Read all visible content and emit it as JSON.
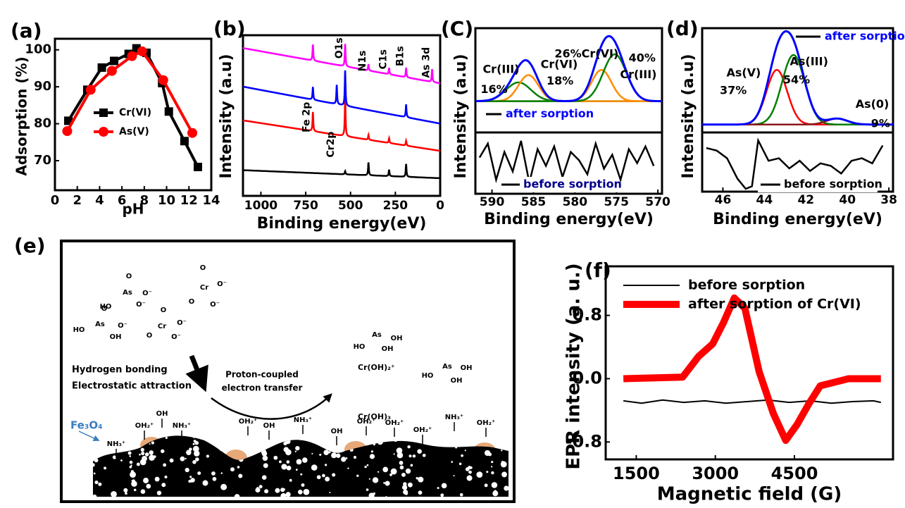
{
  "chart_data": [
    {
      "type": "line",
      "panel": "(a)",
      "xlabel": "pH",
      "ylabel": "Adsorption (%)",
      "xlim": [
        0,
        14
      ],
      "xticks": [
        0,
        2,
        4,
        6,
        8,
        10,
        12,
        14
      ],
      "ylim": [
        62,
        103
      ],
      "yticks": [
        70,
        80,
        90,
        100
      ],
      "legend": "center-left",
      "series": [
        {
          "name": "Cr(VI)",
          "color": "#000000",
          "marker": "square",
          "line_width": 4,
          "x": [
            1.2,
            2.9,
            4.2,
            5.3,
            6.6,
            7.3,
            8.2,
            9.6,
            10.2,
            11.6,
            12.8
          ],
          "values": [
            80.8,
            89.2,
            95.2,
            97,
            98.9,
            100.4,
            99.2,
            91,
            83.3,
            75.3,
            68.3
          ]
        },
        {
          "name": "As(V)",
          "color": "#ff0000",
          "marker": "circle",
          "line_width": 4,
          "x": [
            1.1,
            3.2,
            5.1,
            6.9,
            7.8,
            9.7,
            12.3
          ],
          "values": [
            78,
            89.2,
            94.3,
            98.3,
            99.6,
            91.8,
            77.5
          ]
        }
      ]
    },
    {
      "type": "survey",
      "panel": "(b)",
      "xlabel": "Binding energy(eV)",
      "ylabel": "Intensity (a.u)",
      "xlim": [
        1100,
        0
      ],
      "xticks": [
        1000,
        750,
        500,
        250,
        0
      ],
      "ylim": [
        0,
        100
      ],
      "annotations": [
        {
          "text": "Fe 2p",
          "x": 712,
          "y": 49
        },
        {
          "text": "Cr2p",
          "x": 577,
          "y": 32
        },
        {
          "text": "O1s",
          "x": 530,
          "y": 92
        },
        {
          "text": "N1s",
          "x": 400,
          "y": 84
        },
        {
          "text": "C1s",
          "x": 285,
          "y": 85
        },
        {
          "text": "B1s",
          "x": 190,
          "y": 87
        },
        {
          "text": "As 3d",
          "x": 45,
          "y": 83
        }
      ],
      "series": [
        {
          "color": "#000000",
          "levels": [
            16,
            11
          ],
          "peaks": [
            {
              "x": 530,
              "h": 2
            },
            {
              "x": 400,
              "h": 8
            },
            {
              "x": 285,
              "h": 4
            },
            {
              "x": 190,
              "h": 8
            }
          ]
        },
        {
          "color": "#ff0000",
          "levels": [
            47,
            28
          ],
          "peaks": [
            {
              "x": 710,
              "h": 12
            },
            {
              "x": 530,
              "h": 25
            },
            {
              "x": 400,
              "h": 3
            },
            {
              "x": 285,
              "h": 3
            },
            {
              "x": 190,
              "h": 3
            }
          ]
        },
        {
          "color": "#0000ff",
          "levels": [
            68,
            45
          ],
          "peaks": [
            {
              "x": 710,
              "h": 8
            },
            {
              "x": 577,
              "h": 12
            },
            {
              "x": 530,
              "h": 22
            },
            {
              "x": 190,
              "h": 8
            }
          ]
        },
        {
          "color": "#ff00ff",
          "levels": [
            92,
            70
          ],
          "peaks": [
            {
              "x": 710,
              "h": 10
            },
            {
              "x": 530,
              "h": 14
            },
            {
              "x": 400,
              "h": 4
            },
            {
              "x": 285,
              "h": 4
            },
            {
              "x": 190,
              "h": 6
            },
            {
              "x": 45,
              "h": 8
            }
          ]
        }
      ]
    },
    {
      "type": "xps",
      "panel": "(C)",
      "xlabel": "Binding energy(eV)",
      "ylabel": "Intensity (a.u)",
      "xlim": [
        592,
        569.5
      ],
      "xticks": [
        590,
        585,
        580,
        575,
        570
      ],
      "ylim": [
        0,
        100
      ],
      "after": "after sorption",
      "envelope_color": "#0000ff",
      "background": 30,
      "components": [
        {
          "color": "#008000",
          "center": 586.8,
          "height": 18,
          "width": 1.5
        },
        {
          "color": "#ff8c00",
          "center": 585.6,
          "height": 25,
          "width": 1.2
        },
        {
          "color": "#ff8c00",
          "center": 576.8,
          "height": 30,
          "width": 1.2
        },
        {
          "color": "#008000",
          "center": 575.2,
          "height": 45,
          "width": 1.4
        }
      ],
      "labels": [
        {
          "text": "Cr(III)",
          "x": 588.9,
          "y": 60
        },
        {
          "text": "16%",
          "x": 589.75,
          "y": 41
        },
        {
          "text": "Cr(VI)",
          "x": 581.9,
          "y": 65
        },
        {
          "text": "18%",
          "x": 581.8,
          "y": 49
        },
        {
          "text": "26%Cr(VI)",
          "x": 578.6,
          "y": 75
        },
        {
          "text": "40%",
          "x": 571.9,
          "y": 71
        },
        {
          "text": "Cr(III)",
          "x": 572.35,
          "y": 55
        }
      ],
      "before": {
        "name": "before sorption",
        "color": "#000000",
        "x": [
          591.5,
          590.5,
          589.5,
          588.5,
          587.5,
          586.5,
          585.5,
          584.5,
          583.5,
          582.5,
          581.5,
          580.5,
          579.5,
          578.5,
          577.5,
          576.5,
          575.5,
          574.5,
          573.5,
          572.5,
          571.5,
          570.5
        ],
        "values": [
          60,
          85,
          20,
          70,
          35,
          90,
          15,
          75,
          45,
          80,
          25,
          70,
          55,
          30,
          85,
          40,
          65,
          20,
          75,
          50,
          80,
          45
        ]
      }
    },
    {
      "type": "xps",
      "panel": "(d)",
      "xlabel": "Binding energy(eV)",
      "ylabel": "Intensity (a.u)",
      "xlim": [
        47,
        37.8
      ],
      "xticks": [
        46,
        44,
        42,
        40,
        38
      ],
      "ylim": [
        0,
        105
      ],
      "after": "after sorption",
      "envelope_color": "#0000ff",
      "background": 8,
      "components": [
        {
          "color": "#ff0000",
          "center": 43.4,
          "height": 55,
          "width": 0.5
        },
        {
          "color": "#008000",
          "center": 42.6,
          "height": 70,
          "width": 0.55
        },
        {
          "color": "#8b1a1a",
          "center": 40.5,
          "height": 6,
          "width": 0.5
        }
      ],
      "labels": [
        {
          "text": "As(V)",
          "x": 45.0,
          "y": 59.5
        },
        {
          "text": "37%",
          "x": 45.5,
          "y": 42
        },
        {
          "text": "As(III)",
          "x": 41.85,
          "y": 71
        },
        {
          "text": "54%",
          "x": 42.45,
          "y": 52.5
        },
        {
          "text": "As(0)",
          "x": 38.8,
          "y": 28
        },
        {
          "text": "9%",
          "x": 38.4,
          "y": 8.4
        }
      ],
      "before": {
        "name": "before sorption",
        "color": "#000000",
        "x": [
          46.8,
          46.3,
          45.8,
          45.3,
          44.9,
          44.6,
          44.3,
          43.8,
          43.3,
          42.8,
          42.3,
          41.8,
          41.3,
          40.8,
          40.3,
          39.8,
          39.3,
          38.8,
          38.3
        ],
        "values": [
          80,
          75,
          60,
          20,
          0,
          5,
          95,
          55,
          60,
          40,
          55,
          35,
          50,
          45,
          30,
          55,
          60,
          50,
          85
        ]
      }
    },
    {
      "type": "line",
      "panel": "(f)",
      "xlabel": "Magnetic  field (G)",
      "ylabel": "EPR intensity (a. u.)",
      "xlim": [
        920,
        6370
      ],
      "xticks": [
        1500,
        3000,
        4500
      ],
      "ylim": [
        -1.02,
        1.42
      ],
      "yticks": [
        -0.8,
        {
          "value": 0,
          "label": "0.0"
        },
        0.8
      ],
      "legend": "upper-left",
      "series": [
        {
          "name": "before sorption",
          "color": "#000000",
          "line_width": 2,
          "x": [
            1256,
            1600,
            2000,
            2400,
            2800,
            3200,
            3600,
            4000,
            4400,
            4800,
            5200,
            5600,
            6000,
            6140
          ],
          "values": [
            -0.28,
            -0.31,
            -0.27,
            -0.3,
            -0.28,
            -0.31,
            -0.29,
            -0.27,
            -0.3,
            -0.28,
            -0.31,
            -0.29,
            -0.28,
            -0.3
          ]
        },
        {
          "name": "after sorption of Cr(VI)",
          "color": "#ff0000",
          "line_width": 10,
          "x": [
            1256,
            2380,
            2680,
            2950,
            3155,
            3360,
            3560,
            3830,
            4100,
            4335,
            4550,
            4780,
            4990,
            5530,
            6140
          ],
          "values": [
            0,
            0.02,
            0.28,
            0.44,
            0.71,
            1.02,
            0.89,
            0.09,
            -0.44,
            -0.78,
            -0.58,
            -0.31,
            -0.09,
            0,
            0
          ]
        }
      ]
    }
  ],
  "scheme": {
    "panel": "(e)",
    "texts": [
      "Hydrogen bonding",
      "Electrostatic attraction",
      "Proton-coupled",
      "electron transfer",
      "Cr(OH)₂⁺",
      "Cr(OH)₃",
      "Fe₃O₄",
      "HO",
      "As",
      "O",
      "O⁻",
      "O⁻",
      "O",
      "Cr",
      "O",
      "O⁻",
      "O⁻",
      "O",
      "As",
      "HO",
      "O⁻",
      "OH",
      "O",
      "Cr",
      "O",
      "O⁻",
      "O⁻",
      "As",
      "HO",
      "OH",
      "OH",
      "As",
      "HO",
      "OH",
      "OH",
      "OH",
      "OH₂⁺",
      "NH₃⁺",
      "NH₃⁺",
      "OH₂⁺",
      "OH",
      "NH₃⁺",
      "OH",
      "OH₂⁺",
      "OH₂⁺",
      "OH₂⁺",
      "NH₃⁺",
      "OH₂⁺"
    ]
  }
}
